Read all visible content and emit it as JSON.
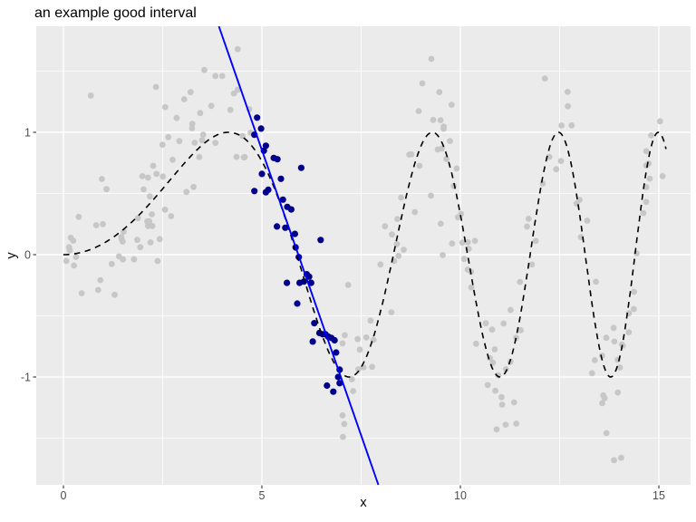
{
  "chart_data": {
    "type": "scatter",
    "title": "an example good interval",
    "xlabel": "x",
    "ylabel": "y",
    "axes": {
      "x_tick_values": [
        0,
        5,
        10,
        15
      ],
      "x_tick_labels": [
        "0",
        "5",
        "10",
        "15"
      ],
      "x_minor_values": [
        2.5,
        7.5,
        12.5
      ],
      "y_tick_values": [
        -1,
        0,
        1
      ],
      "y_tick_labels": [
        "-1",
        "0",
        "1"
      ],
      "y_minor_values": [
        -1.5,
        -0.5,
        0.5,
        1.5
      ],
      "xlim": [
        -0.7,
        15.8
      ],
      "ylim": [
        -1.87,
        1.87
      ],
      "grid": true,
      "legend": "none"
    },
    "colors": {
      "panel_background": "#EBEBEB",
      "major_grid": "#FFFFFF",
      "minor_grid": "#FFFFFF",
      "tick_label": "#4D4D4D",
      "tick_mark": "#333333",
      "background_points": "#C7C7C7",
      "highlighted_points": "#00008B",
      "fit_line": "#0000FF",
      "true_curve": "#000000"
    },
    "true_curve": {
      "description": "dashed black curve, true function",
      "formula": "y = sin(x^2 / 11)",
      "coef": 11,
      "x_range": [
        0,
        15.2
      ],
      "linestyle": "dashed"
    },
    "fit_line": {
      "description": "blue linear fit over the highlighted interval, spans full panel height",
      "slope": -0.933,
      "intercept": 5.52
    },
    "highlight_interval": {
      "x_min": 4.7,
      "x_max": 7.0
    },
    "highlighted_points": [
      [
        4.88,
        1.12
      ],
      [
        4.98,
        1.03
      ],
      [
        4.81,
        0.98
      ],
      [
        5.1,
        0.89
      ],
      [
        5.05,
        0.85
      ],
      [
        5.3,
        0.79
      ],
      [
        5.39,
        0.78
      ],
      [
        5.99,
        0.71
      ],
      [
        5.0,
        0.66
      ],
      [
        5.48,
        0.62
      ],
      [
        4.81,
        0.52
      ],
      [
        5.16,
        0.53
      ],
      [
        5.1,
        0.51
      ],
      [
        5.53,
        0.45
      ],
      [
        5.64,
        0.39
      ],
      [
        5.74,
        0.37
      ],
      [
        5.38,
        0.23
      ],
      [
        5.59,
        0.22
      ],
      [
        5.83,
        0.17
      ],
      [
        6.48,
        0.12
      ],
      [
        5.85,
        0.06
      ],
      [
        5.93,
        -0.02
      ],
      [
        6.13,
        -0.16
      ],
      [
        6.19,
        -0.18
      ],
      [
        6.24,
        -0.23
      ],
      [
        5.63,
        -0.23
      ],
      [
        5.95,
        -0.23
      ],
      [
        6.06,
        -0.22
      ],
      [
        5.89,
        -0.4
      ],
      [
        6.32,
        -0.56
      ],
      [
        6.45,
        -0.64
      ],
      [
        6.53,
        -0.65
      ],
      [
        6.6,
        -0.65
      ],
      [
        6.67,
        -0.67
      ],
      [
        6.75,
        -0.68
      ],
      [
        6.83,
        -0.7
      ],
      [
        6.28,
        -0.71
      ],
      [
        6.87,
        -0.8
      ],
      [
        6.96,
        -0.94
      ],
      [
        6.92,
        -1.0
      ],
      [
        6.64,
        -1.07
      ],
      [
        6.8,
        -1.12
      ],
      [
        6.96,
        -1.05
      ]
    ],
    "background_points": {
      "description": "light gray scatter = true function plus gaussian noise, uniform x outside the highlighted interval",
      "n": 195,
      "generator": {
        "x_range": [
          0,
          15.2
        ],
        "exclude_x": [
          4.72,
          7.02
        ],
        "noise_sd": 0.24,
        "seed": 11
      },
      "notable_outliers": [
        [
          4.39,
          1.68
        ],
        [
          4.0,
          1.46
        ],
        [
          2.33,
          1.37
        ],
        [
          9.27,
          1.6
        ],
        [
          9.04,
          1.4
        ],
        [
          12.13,
          1.44
        ],
        [
          12.7,
          1.33
        ],
        [
          15.03,
          1.09
        ],
        [
          11.14,
          -1.39
        ],
        [
          7.04,
          -1.49
        ],
        [
          13.6,
          -1.15
        ],
        [
          13.87,
          -1.68
        ],
        [
          14.05,
          -1.66
        ],
        [
          0.69,
          1.3
        ]
      ]
    }
  }
}
